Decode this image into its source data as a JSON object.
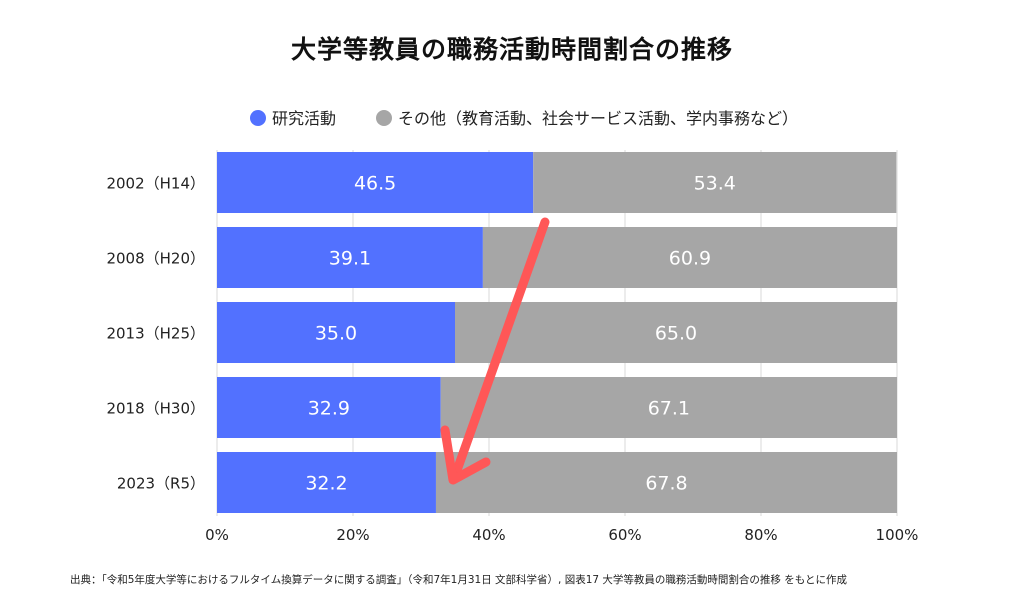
{
  "chart_data": {
    "type": "bar",
    "orientation": "horizontal",
    "stacked": true,
    "title": "大学等教員の職務活動時間割合の推移",
    "categories": [
      "2002（H14）",
      "2008（H20）",
      "2013（H25）",
      "2018（H30）",
      "2023（R5）"
    ],
    "series": [
      {
        "name": "研究活動",
        "values": [
          46.5,
          39.1,
          35.0,
          32.9,
          32.2
        ],
        "labels": [
          "46.5",
          "39.1",
          "35.0",
          "32.9",
          "32.2"
        ],
        "color": "#5271ff"
      },
      {
        "name": "その他（教育活動、社会サービス活動、学内事務など）",
        "values": [
          53.4,
          60.9,
          65.0,
          67.1,
          67.8
        ],
        "labels": [
          "53.4",
          "60.9",
          "65.0",
          "67.1",
          "67.8"
        ],
        "color": "#a6a6a6"
      }
    ],
    "xlim": [
      0,
      100
    ],
    "x_ticks": [
      "0%",
      "20%",
      "40%",
      "60%",
      "80%",
      "100%"
    ],
    "grid": true,
    "legend_position": "top",
    "annotation": {
      "type": "arrow",
      "color": "#ff5757",
      "meaning": "downward trend of research share"
    }
  },
  "source": "出典：「令和5年度大学等におけるフルタイム換算データに関する調査」（令和7年1月31日 文部科学省）, 図表17 大学等教員の職務活動時間割合の推移 をもとに作成"
}
